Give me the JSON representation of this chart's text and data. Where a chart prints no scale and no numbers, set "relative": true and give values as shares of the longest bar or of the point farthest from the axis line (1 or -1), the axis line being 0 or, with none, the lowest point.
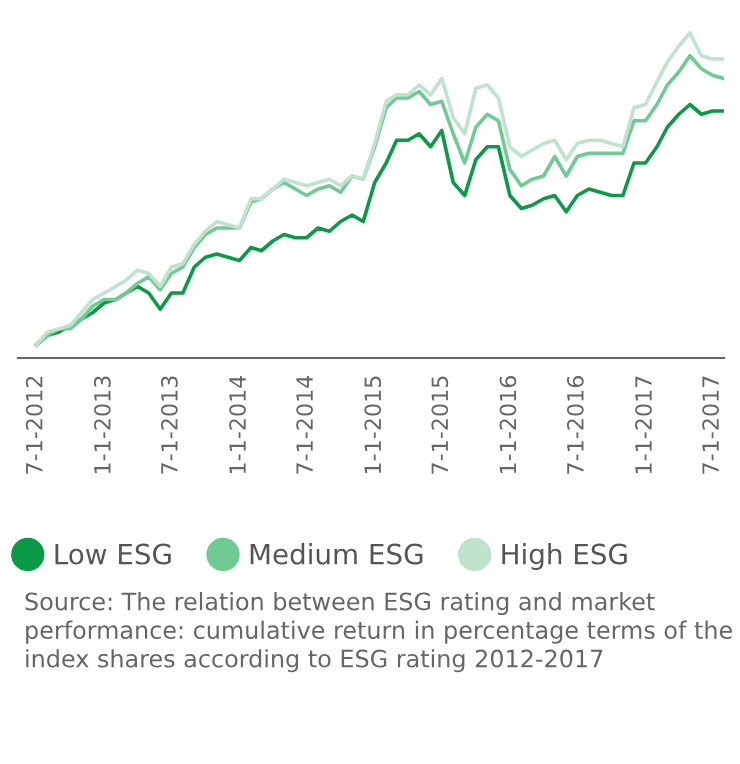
{
  "chart_data": {
    "type": "line",
    "relative": true,
    "x": [
      "2012-07",
      "2012-08",
      "2012-09",
      "2012-10",
      "2012-11",
      "2012-12",
      "2013-01",
      "2013-02",
      "2013-03",
      "2013-04",
      "2013-05",
      "2013-06",
      "2013-07",
      "2013-08",
      "2013-09",
      "2013-10",
      "2013-11",
      "2013-12",
      "2014-01",
      "2014-02",
      "2014-03",
      "2014-04",
      "2014-05",
      "2014-06",
      "2014-07",
      "2014-08",
      "2014-09",
      "2014-10",
      "2014-11",
      "2014-12",
      "2015-01",
      "2015-02",
      "2015-03",
      "2015-04",
      "2015-05",
      "2015-06",
      "2015-07",
      "2015-08",
      "2015-09",
      "2015-10",
      "2015-11",
      "2015-12",
      "2016-01",
      "2016-02",
      "2016-03",
      "2016-04",
      "2016-05",
      "2016-06",
      "2016-07",
      "2016-08",
      "2016-09",
      "2016-10",
      "2016-11",
      "2016-12",
      "2017-01",
      "2017-02",
      "2017-03",
      "2017-04",
      "2017-05",
      "2017-06",
      "2017-07",
      "2017-08"
    ],
    "series": [
      {
        "name": "Low ESG",
        "color": "#0a9a48",
        "values": [
          0.04,
          0.07,
          0.08,
          0.1,
          0.12,
          0.14,
          0.17,
          0.18,
          0.2,
          0.22,
          0.2,
          0.15,
          0.2,
          0.2,
          0.28,
          0.31,
          0.32,
          0.31,
          0.3,
          0.34,
          0.33,
          0.36,
          0.38,
          0.37,
          0.37,
          0.4,
          0.39,
          0.42,
          0.44,
          0.42,
          0.54,
          0.6,
          0.67,
          0.67,
          0.69,
          0.65,
          0.7,
          0.54,
          0.5,
          0.61,
          0.65,
          0.65,
          0.5,
          0.46,
          0.47,
          0.49,
          0.5,
          0.45,
          0.5,
          0.52,
          0.51,
          0.5,
          0.5,
          0.6,
          0.6,
          0.65,
          0.71,
          0.75,
          0.78,
          0.75,
          0.76,
          0.76
        ]
      },
      {
        "name": "Medium ESG",
        "color": "#6fcb94",
        "values": [
          0.04,
          0.07,
          0.09,
          0.09,
          0.12,
          0.16,
          0.18,
          0.18,
          0.2,
          0.23,
          0.25,
          0.21,
          0.26,
          0.28,
          0.34,
          0.38,
          0.4,
          0.4,
          0.4,
          0.48,
          0.49,
          0.52,
          0.54,
          0.52,
          0.5,
          0.52,
          0.53,
          0.51,
          0.56,
          0.55,
          0.65,
          0.77,
          0.8,
          0.8,
          0.82,
          0.78,
          0.79,
          0.69,
          0.6,
          0.71,
          0.75,
          0.73,
          0.58,
          0.53,
          0.55,
          0.56,
          0.62,
          0.56,
          0.62,
          0.63,
          0.63,
          0.63,
          0.63,
          0.73,
          0.73,
          0.78,
          0.84,
          0.88,
          0.93,
          0.89,
          0.87,
          0.86
        ]
      },
      {
        "name": "High ESG",
        "color": "#bfe3cc",
        "values": [
          0.04,
          0.08,
          0.09,
          0.1,
          0.14,
          0.18,
          0.2,
          0.22,
          0.24,
          0.27,
          0.26,
          0.22,
          0.28,
          0.29,
          0.35,
          0.39,
          0.42,
          0.41,
          0.4,
          0.49,
          0.49,
          0.52,
          0.55,
          0.54,
          0.53,
          0.54,
          0.55,
          0.53,
          0.56,
          0.55,
          0.66,
          0.79,
          0.81,
          0.81,
          0.84,
          0.81,
          0.86,
          0.74,
          0.69,
          0.83,
          0.84,
          0.8,
          0.65,
          0.62,
          0.64,
          0.66,
          0.67,
          0.61,
          0.66,
          0.67,
          0.67,
          0.66,
          0.65,
          0.77,
          0.78,
          0.85,
          0.91,
          0.96,
          1.0,
          0.93,
          0.92,
          0.92
        ]
      }
    ],
    "xlim": [
      "2012-05-13",
      "2017-08-01"
    ],
    "xticks": [
      {
        "value": "2012-07-01",
        "label": "7-1-2012"
      },
      {
        "value": "2013-01-01",
        "label": "1-1-2013"
      },
      {
        "value": "2013-07-01",
        "label": "7-1-2013"
      },
      {
        "value": "2014-01-01",
        "label": "1-1-2014"
      },
      {
        "value": "2014-07-01",
        "label": "7-1-2014"
      },
      {
        "value": "2015-01-01",
        "label": "1-1-2015"
      },
      {
        "value": "2015-07-01",
        "label": "7-1-2015"
      },
      {
        "value": "2016-01-01",
        "label": "1-1-2016"
      },
      {
        "value": "2016-07-01",
        "label": "7-1-2016"
      },
      {
        "value": "2017-01-01",
        "label": "1-1-2017"
      },
      {
        "value": "2017-07-01",
        "label": "7-1-2017"
      }
    ],
    "legend": "bottom",
    "grid": false,
    "marker": "none",
    "line_style": "solid",
    "annotations": [
      "Source: The relation between ESG rating and market performance: cumulative return in percentage terms of the index shares according to ESG rating 2012-2017"
    ]
  }
}
